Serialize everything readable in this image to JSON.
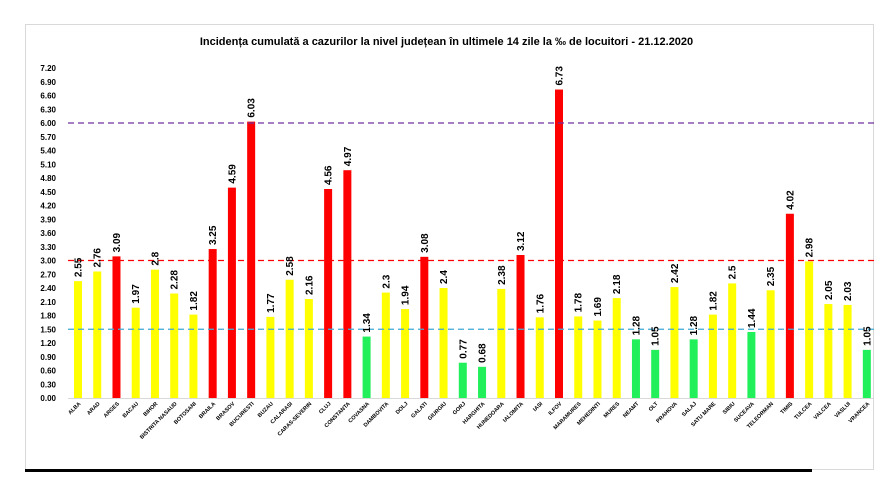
{
  "chart_data": {
    "type": "bar",
    "title": "Incidența cumulată a cazurilor la nivel județean în ultimele 14 zile la ‰ de locuitori - 21.12.2020",
    "xlabel": "",
    "ylabel": "",
    "ylim": [
      0,
      7.2
    ],
    "yticks": [
      "0.00",
      "0.30",
      "0.60",
      "0.90",
      "1.20",
      "1.50",
      "1.80",
      "2.10",
      "2.40",
      "2.70",
      "3.00",
      "3.30",
      "3.60",
      "3.90",
      "4.20",
      "4.50",
      "4.80",
      "5.10",
      "5.40",
      "5.70",
      "6.00",
      "6.30",
      "6.60",
      "6.90",
      "7.20"
    ],
    "grid": false,
    "legend": "none",
    "categories": [
      "ALBA",
      "ARAD",
      "ARGES",
      "BACAU",
      "BIHOR",
      "BISTRITA NASAUD",
      "BOTOSANI",
      "BRAILA",
      "BRASOV",
      "BUCURESTI",
      "BUZAU",
      "CALARASI",
      "CARAS-SEVERIN",
      "CLUJ",
      "CONSTANTA",
      "COVASNA",
      "DAMBOVITA",
      "DOLJ",
      "GALATI",
      "GIURGIU",
      "GORJ",
      "HARGHITA",
      "HUNEDOARA",
      "IALOMITA",
      "IASI",
      "ILFOV",
      "MARAMURES",
      "MEHEDINTI",
      "MURES",
      "NEAMT",
      "OLT",
      "PRAHOVA",
      "SALAJ",
      "SATU MARE",
      "SIBIU",
      "SUCEAVA",
      "TELEORMAN",
      "TIMIS",
      "TULCEA",
      "VALCEA",
      "VASLUI",
      "VRANCEA"
    ],
    "values": [
      2.55,
      2.76,
      3.09,
      1.97,
      2.8,
      2.28,
      1.82,
      3.25,
      4.59,
      6.03,
      1.77,
      2.58,
      2.16,
      4.56,
      4.97,
      1.34,
      2.3,
      1.94,
      3.08,
      2.4,
      0.77,
      0.68,
      2.38,
      3.12,
      1.76,
      6.73,
      1.78,
      1.69,
      2.18,
      1.28,
      1.05,
      2.42,
      1.28,
      1.82,
      2.5,
      1.44,
      2.35,
      4.02,
      2.98,
      2.05,
      2.03,
      1.05
    ],
    "value_labels": [
      "2.55",
      "2.76",
      "3.09",
      "1.97",
      "2.8",
      "2.28",
      "1.82",
      "3.25",
      "4.59",
      "6.03",
      "1.77",
      "2.58",
      "2.16",
      "4.56",
      "4.97",
      "1.34",
      "2.3",
      "1.94",
      "3.08",
      "2.4",
      "0.77",
      "0.68",
      "2.38",
      "3.12",
      "1.76",
      "6.73",
      "1.78",
      "1.69",
      "2.18",
      "1.28",
      "1.05",
      "2.42",
      "1.28",
      "1.82",
      "2.5",
      "1.44",
      "2.35",
      "4.02",
      "2.98",
      "2.05",
      "2.03",
      "1.05"
    ],
    "thresholds": [
      {
        "value": 1.5,
        "color": "#3fa9d6"
      },
      {
        "value": 3.0,
        "color": "#ff0000"
      },
      {
        "value": 6.0,
        "color": "#7030a0"
      }
    ],
    "colors": {
      "low": "#22f05a",
      "mid": "#ffff00",
      "high": "#ff0000"
    }
  }
}
